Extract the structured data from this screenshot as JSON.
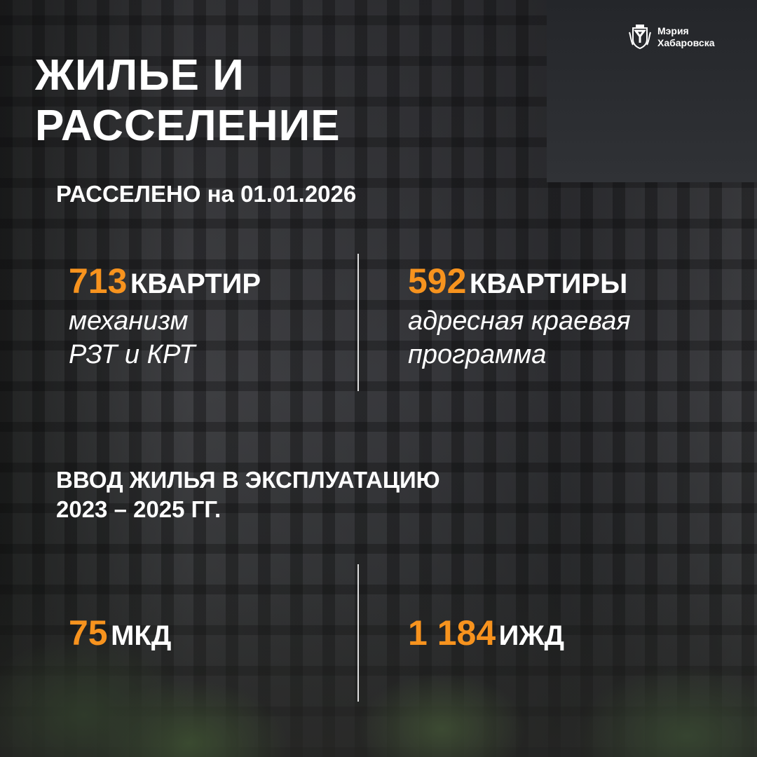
{
  "logo": {
    "line1": "Мэрия",
    "line2": "Хабаровска",
    "emblem": "city-coat-of-arms"
  },
  "title": {
    "line1": "ЖИЛЬЕ И",
    "line2": "РАССЕЛЕНИЕ"
  },
  "resettled": {
    "heading": "РАССЕЛЕНО на 01.01.2026",
    "left": {
      "number": "713",
      "unit": "КВАРТИР",
      "desc1": "механизм",
      "desc2": "РЗТ и КРТ"
    },
    "right": {
      "number": "592",
      "unit": "КВАРТИРЫ",
      "desc1": "адресная краевая",
      "desc2": "программа"
    }
  },
  "commissioning": {
    "heading1": "ВВОД ЖИЛЬЯ В ЭКСПЛУАТАЦИЮ",
    "heading2": "2023 – 2025 ГГ.",
    "left": {
      "number": "75",
      "unit": "МКД"
    },
    "right": {
      "number": "1 184",
      "unit": "ИЖД"
    }
  },
  "colors": {
    "accent": "#f7931e",
    "text": "#ffffff"
  }
}
